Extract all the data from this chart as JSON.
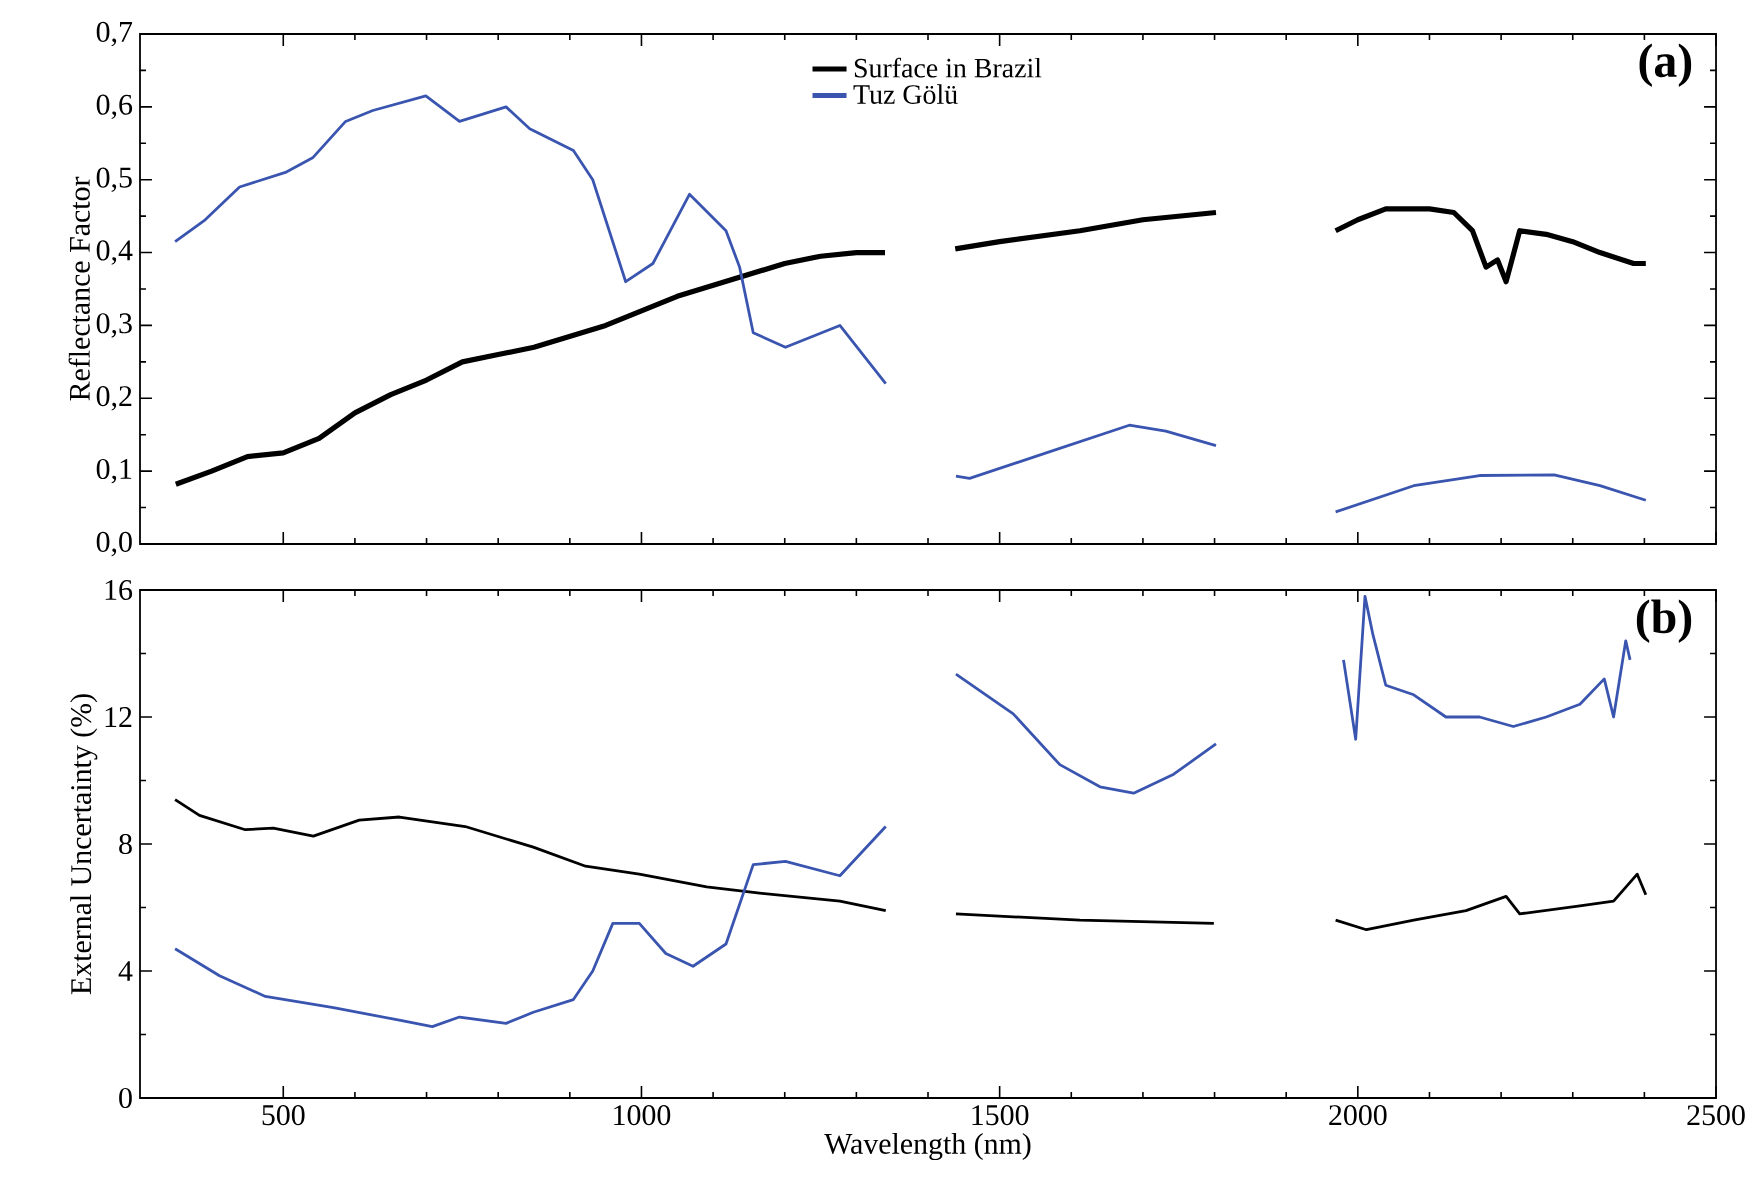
{
  "chart_data": [
    {
      "type": "line",
      "ylabel": "Reflectance Factor",
      "xlim": [
        300,
        2500
      ],
      "xticks": [
        500,
        1000,
        1500,
        2000,
        2500
      ],
      "ylim": [
        0,
        0.7
      ],
      "yticks": [
        {
          "value": 0,
          "label": "0,0"
        },
        {
          "value": 0.1,
          "label": "0,1"
        },
        {
          "value": 0.2,
          "label": "0,2"
        },
        {
          "value": 0.3,
          "label": "0,3"
        },
        {
          "value": 0.4,
          "label": "0,4"
        },
        {
          "value": 0.5,
          "label": "0,5"
        },
        {
          "value": 0.6,
          "label": "0,6"
        },
        {
          "value": 0.7,
          "label": "0,7"
        }
      ],
      "tick_labels": "y",
      "legend": "top",
      "annotations": [
        "(a)"
      ],
      "series": [
        {
          "name": "Surface in Brazil",
          "color": "#000000",
          "x": [
            350,
            400,
            450,
            500,
            550,
            600,
            650,
            700,
            750,
            800,
            850,
            900,
            950,
            1000,
            1050,
            1100,
            1150,
            1200,
            1250,
            1300,
            1340,
            1390,
            1438,
            1500,
            1612,
            1700,
            1802,
            1900,
            1969,
            2000,
            2039,
            2100,
            2134,
            2160,
            2179,
            2195,
            2207,
            2226,
            2263,
            2300,
            2338,
            2385,
            2402
          ],
          "values": [
            0.082,
            0.1,
            0.12,
            0.125,
            0.145,
            0.18,
            0.205,
            0.225,
            0.25,
            0.26,
            0.27,
            0.285,
            0.3,
            0.32,
            0.34,
            0.355,
            0.37,
            0.385,
            0.395,
            0.4,
            0.4,
            null,
            0.405,
            0.415,
            0.43,
            0.445,
            0.455,
            null,
            0.43,
            0.445,
            0.46,
            0.46,
            0.455,
            0.43,
            0.38,
            0.39,
            0.36,
            0.43,
            0.425,
            0.415,
            0.4,
            0.385,
            0.385
          ]
        },
        {
          "name": "Tuz Gölü",
          "color": "#3a55b0",
          "x": [
            349,
            391,
            439,
            503,
            541,
            587,
            625,
            699,
            746,
            811,
            844,
            905,
            932,
            978,
            1016,
            1067,
            1118,
            1137,
            1156,
            1201,
            1277,
            1341,
            1390,
            1439,
            1458,
            1565,
            1681,
            1732,
            1802,
            1900,
            1969,
            2078,
            2170,
            2274,
            2338,
            2402
          ],
          "values": [
            0.415,
            0.445,
            0.49,
            0.51,
            0.53,
            0.58,
            0.595,
            0.615,
            0.58,
            0.6,
            0.57,
            0.54,
            0.5,
            0.36,
            0.385,
            0.48,
            0.43,
            0.38,
            0.29,
            0.27,
            0.3,
            0.22,
            null,
            0.093,
            0.09,
            0.125,
            0.163,
            0.155,
            0.135,
            null,
            0.044,
            0.08,
            0.094,
            0.095,
            0.08,
            0.06
          ]
        }
      ]
    },
    {
      "type": "line",
      "xlabel": "Wavelength (nm)",
      "ylabel": "External Uncertainty (%)",
      "xlim": [
        300,
        2500
      ],
      "xticks": [
        500,
        1000,
        1500,
        2000,
        2500
      ],
      "ylim": [
        0,
        16
      ],
      "yticks": [
        0,
        4,
        8,
        12,
        16
      ],
      "annotations": [
        "(b)"
      ],
      "series": [
        {
          "color": "#000000",
          "x": [
            349,
            383,
            447,
            486,
            542,
            606,
            662,
            754,
            849,
            922,
            997,
            1091,
            1165,
            1277,
            1341,
            1390,
            1439,
            1612,
            1799,
            1900,
            1969,
            2012,
            2078,
            2151,
            2207,
            2226,
            2310,
            2357,
            2390,
            2402
          ],
          "values": [
            9.4,
            8.9,
            8.45,
            8.5,
            8.25,
            8.75,
            8.85,
            8.55,
            7.9,
            7.3,
            7.05,
            6.65,
            6.45,
            6.2,
            5.9,
            null,
            5.8,
            5.6,
            5.5,
            null,
            5.6,
            5.3,
            5.6,
            5.9,
            6.35,
            5.8,
            6.05,
            6.2,
            7.05,
            6.4
          ]
        },
        {
          "color": "#3a55b0",
          "x": [
            349,
            411,
            475,
            570,
            662,
            708,
            746,
            811,
            849,
            905,
            932,
            960,
            997,
            1034,
            1072,
            1118,
            1156,
            1201,
            1277,
            1341,
            1390,
            1439,
            1519,
            1584,
            1640,
            1687,
            1743,
            1802,
            1900,
            1980,
            1997,
            2010,
            2021,
            2039,
            2078,
            2123,
            2170,
            2217,
            2263,
            2310,
            2344,
            2357,
            2374,
            2380
          ],
          "values": [
            4.7,
            3.85,
            3.2,
            2.85,
            2.45,
            2.25,
            2.55,
            2.35,
            2.7,
            3.1,
            4.0,
            5.5,
            5.5,
            4.55,
            4.15,
            4.85,
            7.35,
            7.45,
            7.0,
            8.55,
            null,
            13.35,
            12.1,
            10.5,
            9.8,
            9.6,
            10.2,
            11.15,
            null,
            13.8,
            11.3,
            15.8,
            14.6,
            13.0,
            12.7,
            12.0,
            12.0,
            11.7,
            12.0,
            12.4,
            13.2,
            12.0,
            14.4,
            13.8
          ]
        }
      ]
    }
  ]
}
